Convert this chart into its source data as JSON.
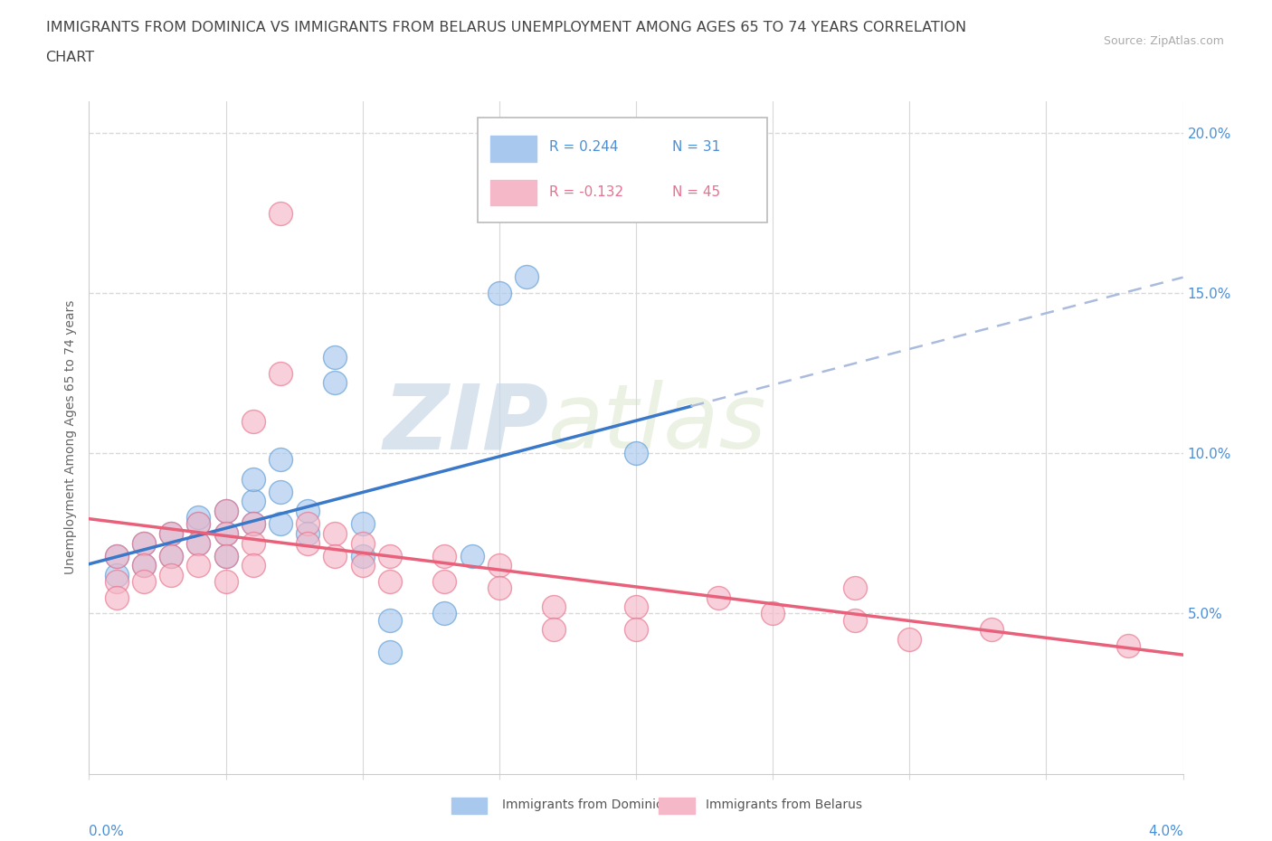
{
  "title_line1": "IMMIGRANTS FROM DOMINICA VS IMMIGRANTS FROM BELARUS UNEMPLOYMENT AMONG AGES 65 TO 74 YEARS CORRELATION",
  "title_line2": "CHART",
  "source_text": "Source: ZipAtlas.com",
  "ylabel": "Unemployment Among Ages 65 to 74 years",
  "watermark_zip": "ZIP",
  "watermark_atlas": "atlas",
  "legend_blue_r": "R = 0.244",
  "legend_blue_n": "N = 31",
  "legend_pink_r": "R = -0.132",
  "legend_pink_n": "N = 45",
  "blue_fill": "#a8c8ee",
  "blue_edge": "#5b9bd5",
  "pink_fill": "#f4b8c8",
  "pink_edge": "#e8708a",
  "blue_line": "#3a78c9",
  "pink_line": "#e8607a",
  "blue_dashed": "#aabbdd",
  "text_blue": "#4a90d9",
  "text_pink": "#e87090",
  "blue_scatter": [
    [
      0.001,
      0.068
    ],
    [
      0.001,
      0.062
    ],
    [
      0.002,
      0.072
    ],
    [
      0.002,
      0.065
    ],
    [
      0.003,
      0.075
    ],
    [
      0.003,
      0.068
    ],
    [
      0.004,
      0.078
    ],
    [
      0.004,
      0.072
    ],
    [
      0.004,
      0.08
    ],
    [
      0.005,
      0.082
    ],
    [
      0.005,
      0.075
    ],
    [
      0.005,
      0.068
    ],
    [
      0.006,
      0.085
    ],
    [
      0.006,
      0.078
    ],
    [
      0.006,
      0.092
    ],
    [
      0.007,
      0.098
    ],
    [
      0.007,
      0.088
    ],
    [
      0.007,
      0.078
    ],
    [
      0.008,
      0.082
    ],
    [
      0.008,
      0.075
    ],
    [
      0.009,
      0.13
    ],
    [
      0.009,
      0.122
    ],
    [
      0.01,
      0.078
    ],
    [
      0.01,
      0.068
    ],
    [
      0.011,
      0.048
    ],
    [
      0.011,
      0.038
    ],
    [
      0.013,
      0.05
    ],
    [
      0.014,
      0.068
    ],
    [
      0.015,
      0.15
    ],
    [
      0.016,
      0.155
    ],
    [
      0.02,
      0.1
    ]
  ],
  "pink_scatter": [
    [
      0.001,
      0.068
    ],
    [
      0.001,
      0.06
    ],
    [
      0.001,
      0.055
    ],
    [
      0.002,
      0.072
    ],
    [
      0.002,
      0.065
    ],
    [
      0.002,
      0.06
    ],
    [
      0.003,
      0.075
    ],
    [
      0.003,
      0.068
    ],
    [
      0.003,
      0.062
    ],
    [
      0.004,
      0.078
    ],
    [
      0.004,
      0.072
    ],
    [
      0.004,
      0.065
    ],
    [
      0.005,
      0.082
    ],
    [
      0.005,
      0.075
    ],
    [
      0.005,
      0.068
    ],
    [
      0.005,
      0.06
    ],
    [
      0.006,
      0.078
    ],
    [
      0.006,
      0.072
    ],
    [
      0.006,
      0.065
    ],
    [
      0.006,
      0.11
    ],
    [
      0.007,
      0.175
    ],
    [
      0.007,
      0.125
    ],
    [
      0.008,
      0.078
    ],
    [
      0.008,
      0.072
    ],
    [
      0.009,
      0.075
    ],
    [
      0.009,
      0.068
    ],
    [
      0.01,
      0.072
    ],
    [
      0.01,
      0.065
    ],
    [
      0.011,
      0.068
    ],
    [
      0.011,
      0.06
    ],
    [
      0.013,
      0.068
    ],
    [
      0.013,
      0.06
    ],
    [
      0.015,
      0.065
    ],
    [
      0.015,
      0.058
    ],
    [
      0.017,
      0.052
    ],
    [
      0.017,
      0.045
    ],
    [
      0.02,
      0.052
    ],
    [
      0.02,
      0.045
    ],
    [
      0.023,
      0.055
    ],
    [
      0.025,
      0.05
    ],
    [
      0.028,
      0.048
    ],
    [
      0.028,
      0.058
    ],
    [
      0.03,
      0.042
    ],
    [
      0.033,
      0.045
    ],
    [
      0.038,
      0.04
    ]
  ],
  "xmin": 0.0,
  "xmax": 0.04,
  "ymin": 0.0,
  "ymax": 0.21,
  "y_ticks": [
    0.05,
    0.1,
    0.15,
    0.2
  ],
  "y_tick_labels": [
    "5.0%",
    "10.0%",
    "15.0%",
    "20.0%"
  ],
  "grid_color": "#d8d8d8",
  "background_color": "#ffffff",
  "title_fontsize": 11.5,
  "source_fontsize": 9,
  "axis_label_fontsize": 10,
  "tick_label_fontsize": 11
}
